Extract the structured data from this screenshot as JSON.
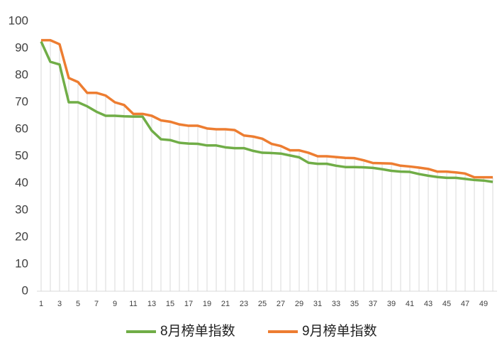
{
  "chart_data": {
    "type": "line",
    "categories": [
      1,
      null,
      3,
      null,
      5,
      null,
      7,
      null,
      9,
      null,
      11,
      null,
      13,
      null,
      15,
      null,
      17,
      null,
      19,
      null,
      21,
      null,
      23,
      null,
      25,
      null,
      27,
      null,
      29,
      null,
      31,
      null,
      33,
      null,
      35,
      null,
      37,
      null,
      39,
      null,
      41,
      null,
      43,
      null,
      45,
      null,
      47,
      null,
      49,
      null
    ],
    "series": [
      {
        "name": "8月榜单指数",
        "color": "#70ad47",
        "values": [
          92.5,
          85,
          84,
          70,
          70,
          68.5,
          66.5,
          65,
          65,
          64.8,
          64.7,
          64.7,
          59.5,
          56.3,
          56,
          55,
          54.7,
          54.6,
          54,
          54,
          53.3,
          53,
          53,
          52,
          51.3,
          51.2,
          51,
          50.3,
          49.6,
          47.6,
          47.2,
          47.2,
          46.5,
          46,
          46,
          45.9,
          45.7,
          45.2,
          44.6,
          44.3,
          44.2,
          43.4,
          42.8,
          42.3,
          42,
          42,
          41.6,
          41.2,
          41,
          40.5
        ]
      },
      {
        "name": "9月榜单指数",
        "color": "#ed7d31",
        "values": [
          93,
          93,
          91.5,
          79,
          77.5,
          73.5,
          73.5,
          72.5,
          70,
          69,
          65.7,
          65.7,
          65,
          63.3,
          62.8,
          61.8,
          61.3,
          61.3,
          60.3,
          60,
          60,
          59.7,
          57.7,
          57.3,
          56.5,
          54.6,
          53.8,
          52.2,
          52.2,
          51.3,
          50,
          50,
          49.7,
          49.4,
          49.3,
          48.5,
          47.5,
          47.4,
          47.3,
          46.5,
          46.2,
          45.8,
          45.3,
          44.3,
          44.3,
          44,
          43.6,
          42.2,
          42.2,
          42.2
        ]
      }
    ],
    "ylim": [
      0,
      100
    ],
    "yticks": [
      0,
      10,
      20,
      30,
      40,
      50,
      60,
      70,
      80,
      90,
      100
    ],
    "drop_lines": true,
    "legend": "bottom"
  }
}
